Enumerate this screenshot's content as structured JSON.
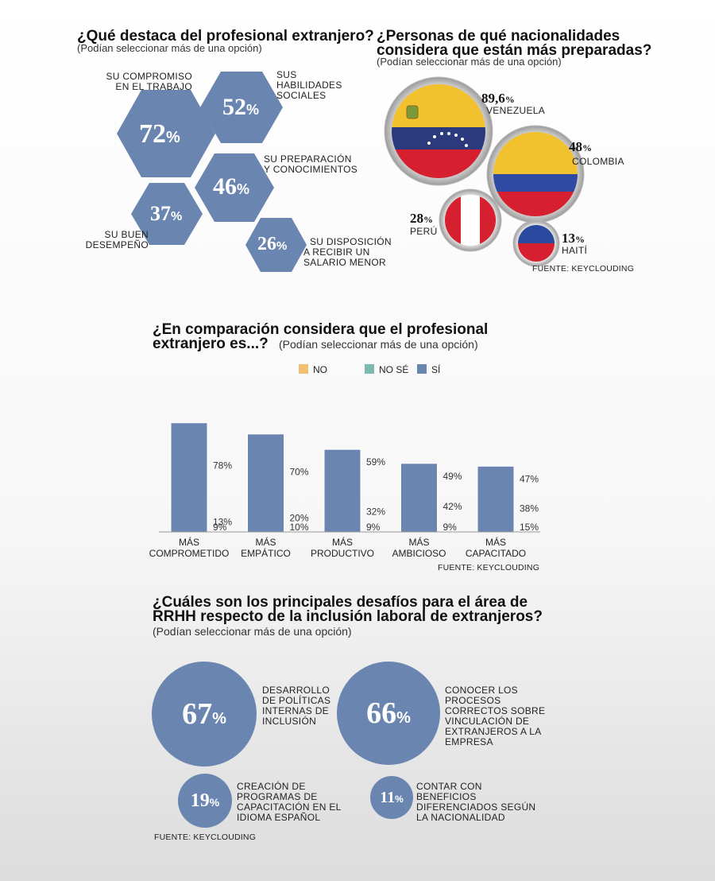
{
  "section1": {
    "title": "¿Qué destaca del profesional extranjero?",
    "subtitle": "(Podían seleccionar más de una opción)",
    "items": [
      {
        "value": "72",
        "label": "SU COMPROMISO EN EL TRABAJO"
      },
      {
        "value": "52",
        "label": "SUS HABILIDADES SOCIALES"
      },
      {
        "value": "46",
        "label": "SU PREPARACIÓN Y CONOCIMIENTOS"
      },
      {
        "value": "37",
        "label": "SU BUEN DESEMPEÑO"
      },
      {
        "value": "26",
        "label": "SU DISPOSICIÓN A RECIBIR UN SALARIO MENOR"
      }
    ],
    "label_lines": {
      "compromiso": [
        "SU COMPROMISO",
        "EN EL TRABAJO"
      ],
      "sociales": [
        "SUS",
        "HABILIDADES",
        "SOCIALES"
      ],
      "preparacion": [
        "SU PREPARACIÓN",
        "Y CONOCIMIENTOS"
      ],
      "desempeno": [
        "SU BUEN",
        "DESEMPEÑO"
      ],
      "salario": [
        "SU DISPOSICIÓN",
        "A RECIBIR UN",
        "SALARIO MENOR"
      ]
    },
    "pct_symbol": "%"
  },
  "section2": {
    "title_lines": [
      "¿Personas de qué nacionalidades",
      "considera que están más preparadas?"
    ],
    "subtitle": "(Podían seleccionar más de una opción)",
    "flags": [
      {
        "value": "89,6",
        "country": "VENEZUELA"
      },
      {
        "value": "48",
        "country": "COLOMBIA"
      },
      {
        "value": "28",
        "country": "PERÚ"
      },
      {
        "value": "13",
        "country": "HAITÍ"
      }
    ],
    "source": "FUENTE: KEYCLOUDING"
  },
  "section3": {
    "title_line1": "¿En comparación considera que el profesional",
    "title_line2": "extranjero es...?",
    "subtitle": "(Podían seleccionar más de una opción)",
    "source": "FUENTE: KEYCLOUDING"
  },
  "section4": {
    "title_lines": [
      "¿Cuáles son los principales desafíos para el área de",
      "RRHH respecto de la inclusión laboral de extranjeros?"
    ],
    "subtitle": "(Podían seleccionar más de una opción)",
    "items": [
      {
        "value": "67",
        "lines": [
          "DESARROLLO",
          "DE POLÍTICAS",
          "INTERNAS DE",
          "INCLUSIÓN"
        ]
      },
      {
        "value": "66",
        "lines": [
          "CONOCER LOS",
          "PROCESOS",
          "CORRECTOS SOBRE",
          "VINCULACIÓN DE",
          "EXTRANJEROS A LA",
          "EMPRESA"
        ]
      },
      {
        "value": "19",
        "lines": [
          "CREACIÓN DE",
          "PROGRAMAS DE",
          "CAPACITACIÓN EN EL",
          "IDIOMA ESPAÑOL"
        ]
      },
      {
        "value": "11",
        "lines": [
          "CONTAR CON",
          "BENEFICIOS",
          "DIFERENCIADOS SEGÚN",
          "LA NACIONALIDAD"
        ]
      }
    ],
    "source": "FUENTE: KEYCLOUDING"
  },
  "colors": {
    "blue": "#6a86b0",
    "teal": "#7fb8ae",
    "orange": "#f2bf75",
    "venezuela_yellow": "#f2c12e",
    "venezuela_blue": "#2a3a7c",
    "venezuela_red": "#d6202f",
    "peru_red": "#d6202f",
    "haiti_blue": "#2a4aa0",
    "haiti_red": "#d6202f",
    "colombia_yellow": "#f2c12e",
    "colombia_blue": "#2f4aa3",
    "colombia_red": "#d6202f"
  },
  "chart_data": {
    "type": "bar",
    "stacked": true,
    "categories": [
      [
        "MÁS",
        "COMPROMETIDO"
      ],
      [
        "MÁS",
        "EMPÁTICO"
      ],
      [
        "MÁS",
        "PRODUCTIVO"
      ],
      [
        "MÁS",
        "AMBICIOSO"
      ],
      [
        "MÁS",
        "CAPACITADO"
      ]
    ],
    "series": [
      {
        "name": "NO",
        "color": "#f2bf75",
        "values": [
          9,
          10,
          9,
          9,
          15
        ]
      },
      {
        "name": "NO SÉ",
        "color": "#7fb8ae",
        "values": [
          13,
          20,
          32,
          42,
          38
        ]
      },
      {
        "name": "SÍ",
        "color": "#6a86b0",
        "values": [
          78,
          70,
          59,
          49,
          47
        ]
      }
    ],
    "value_suffix": "%",
    "legend_position": "top",
    "grid": false
  }
}
